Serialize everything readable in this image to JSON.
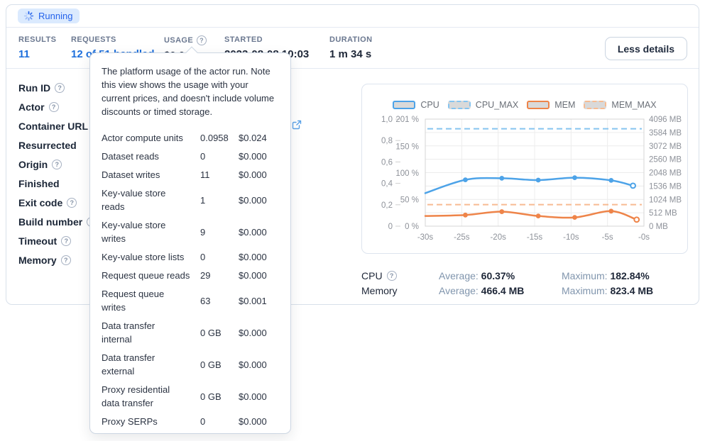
{
  "status_badge": {
    "label": "Running"
  },
  "stats": {
    "items": [
      {
        "label": "RESULTS",
        "value": "11",
        "link": true,
        "help": false
      },
      {
        "label": "REQUESTS",
        "value": "12 of 51 handled",
        "link": true,
        "help": false
      },
      {
        "label": "USAGE",
        "value": "$0.025",
        "link": false,
        "help": true
      },
      {
        "label": "STARTED",
        "value": "2023-08-08 10:03",
        "link": false,
        "help": false
      },
      {
        "label": "DURATION",
        "value": "1 m 34 s",
        "link": false,
        "help": false
      }
    ],
    "less_details_label": "Less details"
  },
  "details": {
    "labels": [
      {
        "label": "Run ID",
        "help": true
      },
      {
        "label": "Actor",
        "help": true
      },
      {
        "label": "Container URL",
        "help": true
      },
      {
        "label": "Resurrected",
        "help": false
      },
      {
        "label": "Origin",
        "help": true
      },
      {
        "label": "Finished",
        "help": false
      },
      {
        "label": "Exit code",
        "help": true
      },
      {
        "label": "Build number",
        "help": true
      },
      {
        "label": "Timeout",
        "help": true
      },
      {
        "label": "Memory",
        "help": true
      }
    ]
  },
  "tooltip": {
    "description": "The platform usage of the actor run. Note this view shows the usage with your current prices, and doesn't include volume discounts or timed storage.",
    "rows": [
      {
        "label": "Actor compute units",
        "quantity": "0.0958",
        "price": "$0.024"
      },
      {
        "label": "Dataset reads",
        "quantity": "0",
        "price": "$0.000"
      },
      {
        "label": "Dataset writes",
        "quantity": "11",
        "price": "$0.000"
      },
      {
        "label": "Key-value store\nreads",
        "quantity": "1",
        "price": "$0.000"
      },
      {
        "label": "Key-value store\nwrites",
        "quantity": "9",
        "price": "$0.000"
      },
      {
        "label": "Key-value store lists",
        "quantity": "0",
        "price": "$0.000"
      },
      {
        "label": "Request queue reads",
        "quantity": "29",
        "price": "$0.000"
      },
      {
        "label": "Request queue\nwrites",
        "quantity": "63",
        "price": "$0.001"
      },
      {
        "label": "Data transfer\ninternal",
        "quantity": "0 GB",
        "price": "$0.000"
      },
      {
        "label": "Data transfer\nexternal",
        "quantity": "0 GB",
        "price": "$0.000"
      },
      {
        "label": "Proxy residential\ndata transfer",
        "quantity": "0 GB",
        "price": "$0.000"
      },
      {
        "label": "Proxy SERPs",
        "quantity": "0",
        "price": "$0.000"
      }
    ]
  },
  "chart_data": {
    "type": "line",
    "x_axis": {
      "min": -30,
      "max": 0,
      "ticks": [
        -30,
        -25,
        -20,
        -15,
        -10,
        -5,
        0
      ],
      "tick_labels": [
        "-30s",
        "-25s",
        "-20s",
        "-15s",
        "-10s",
        "-5s",
        "-0s"
      ]
    },
    "percent_axis": {
      "max": 201,
      "ticks": [
        0,
        50,
        100,
        150,
        201
      ],
      "tick_labels": [
        "0 %",
        "50 %",
        "100 %",
        "150 %",
        "201 %"
      ]
    },
    "memory_axis": {
      "max": 4096,
      "ticks": [
        0,
        512,
        1024,
        1536,
        2048,
        2560,
        3072,
        3584,
        4096
      ],
      "tick_labels": [
        "0 MB",
        "512 MB",
        "1024 MB",
        "1536 MB",
        "2048 MB",
        "2560 MB",
        "3072 MB",
        "3584 MB",
        "4096 MB"
      ]
    },
    "scale_axis": {
      "max": 1,
      "ticks": [
        0,
        0.2,
        0.4,
        0.6,
        0.8,
        1
      ],
      "tick_labels": [
        "0",
        "0,2",
        "0,4",
        "0,6",
        "0,8",
        "1,0"
      ]
    },
    "series": [
      {
        "name": "CPU",
        "axis": "percent",
        "style": "solid",
        "color": "#4da3e8",
        "points": [
          [
            -30,
            62
          ],
          [
            -24.5,
            87
          ],
          [
            -19.5,
            90
          ],
          [
            -14.5,
            86.5
          ],
          [
            -9.5,
            91
          ],
          [
            -4.5,
            86
          ],
          [
            -1.5,
            76
          ]
        ]
      },
      {
        "name": "CPU_MAX",
        "axis": "percent",
        "style": "dashed",
        "color": "#85c4f0",
        "constant": 182.84
      },
      {
        "name": "MEM",
        "axis": "memory",
        "style": "solid",
        "color": "#ee8449",
        "points": [
          [
            -30,
            390
          ],
          [
            -24.5,
            425
          ],
          [
            -19.5,
            555
          ],
          [
            -14.5,
            390
          ],
          [
            -9.5,
            335
          ],
          [
            -4.5,
            575
          ],
          [
            -1,
            250
          ]
        ]
      },
      {
        "name": "MEM_MAX",
        "axis": "memory",
        "style": "dashed",
        "color": "#f7bb92",
        "constant": 823.4
      }
    ]
  },
  "summary": {
    "average_prefix": "Average:",
    "maximum_prefix": "Maximum:",
    "rows": [
      {
        "label": "CPU",
        "help": true,
        "average": "60.37%",
        "maximum": "182.84%"
      },
      {
        "label": "Memory",
        "help": false,
        "average": "466.4 MB",
        "maximum": "823.4 MB"
      }
    ]
  },
  "colors": {
    "accent_blue": "#2563eb",
    "link_blue": "#1d6fdc",
    "cpu": "#4da3e8",
    "cpu_max": "#85c4f0",
    "mem": "#ee8449",
    "mem_max": "#f7bb92"
  }
}
